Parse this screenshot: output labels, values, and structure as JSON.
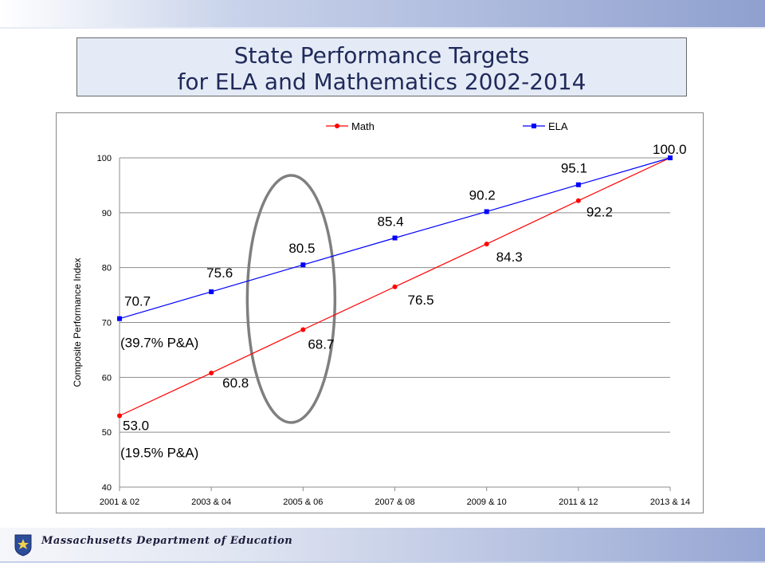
{
  "header": {
    "title_line1": "State Performance Targets",
    "title_line2": "for ELA and Mathematics 2002-2014"
  },
  "footer": {
    "department": "Massachusetts Department of Education",
    "seal_icon": "massachusetts-seal-icon"
  },
  "colors": {
    "math": "#ff0000",
    "ela": "#0000ff",
    "ellipse": "#7f7f7f"
  },
  "chart_data": {
    "type": "line",
    "title": "",
    "xlabel": "",
    "ylabel": "Composite Performance Index",
    "categories": [
      "2001 & 02",
      "2003 & 04",
      "2005 & 06",
      "2007 & 08",
      "2009 & 10",
      "2011 & 12",
      "2013 & 14"
    ],
    "ylim": [
      40,
      100
    ],
    "yticks": [
      40,
      50,
      60,
      70,
      80,
      90,
      100
    ],
    "grid": true,
    "legend": "top",
    "series": [
      {
        "name": "Math",
        "values": [
          53.0,
          60.8,
          68.7,
          76.5,
          84.3,
          92.2,
          100.0
        ],
        "labels": [
          "53.0",
          "60.8",
          "68.7",
          "76.5",
          "84.3",
          "92.2",
          "100.0"
        ]
      },
      {
        "name": "ELA",
        "values": [
          70.7,
          75.6,
          80.5,
          85.4,
          90.2,
          95.1,
          100.0
        ],
        "labels": [
          "70.7",
          "75.6",
          "80.5",
          "85.4",
          "90.2",
          "95.1",
          "100.0"
        ]
      }
    ],
    "annotations": [
      "(39.7% P&A)",
      "(19.5% P&A)"
    ],
    "highlight": {
      "shape": "ellipse",
      "category": "2005 & 06"
    }
  }
}
